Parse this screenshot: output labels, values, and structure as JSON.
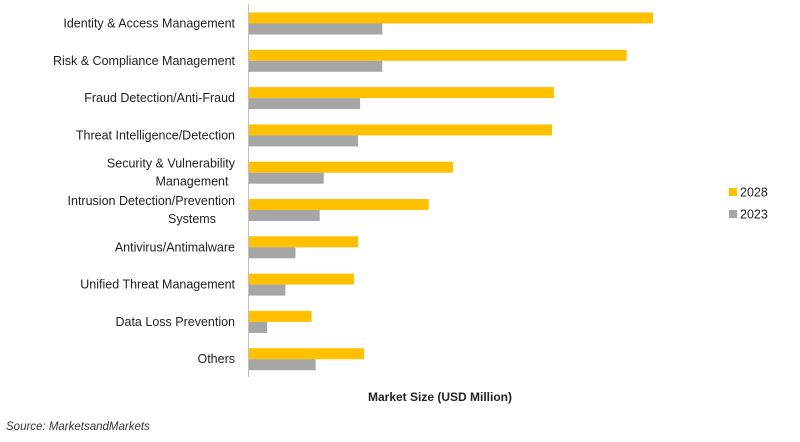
{
  "chart_data": {
    "type": "bar",
    "orientation": "horizontal",
    "categories": [
      "Identity & Access Management",
      "Risk & Compliance Management",
      "Fraud Detection/Anti-Fraud",
      "Threat Intelligence/Detection",
      "Security & Vulnerability Management",
      "Intrusion Detection/Prevention Systems",
      "Antivirus/Antimalware",
      "Unified Threat Management",
      "Data Loss Prevention",
      "Others"
    ],
    "category_lines": [
      [
        "Identity & Access Management"
      ],
      [
        "Risk & Compliance Management"
      ],
      [
        "Fraud Detection/Anti-Fraud"
      ],
      [
        "Threat Intelligence/Detection"
      ],
      [
        "Security & Vulnerability",
        "Management"
      ],
      [
        "Intrusion Detection/Prevention",
        "Systems"
      ],
      [
        "Antivirus/Antimalware"
      ],
      [
        "Unified Threat Management"
      ],
      [
        "Data Loss Prevention"
      ],
      [
        "Others"
      ]
    ],
    "series": [
      {
        "name": "2028",
        "color": "#FFC000",
        "values": [
          100,
          93.5,
          75.5,
          75,
          50.5,
          44.5,
          27,
          26,
          15.5,
          28.5
        ]
      },
      {
        "name": "2023",
        "color": "#A6A6A6",
        "values": [
          33,
          33,
          27.5,
          27,
          18.5,
          17.5,
          11.5,
          9,
          4.5,
          16.5
        ]
      }
    ],
    "xlim": [
      0,
      100
    ],
    "xlabel": "Market Size (USD Million)",
    "ylabel": "",
    "title": "",
    "grid": false,
    "legend_position": "right"
  },
  "source": "Source: MarketsandMarkets"
}
